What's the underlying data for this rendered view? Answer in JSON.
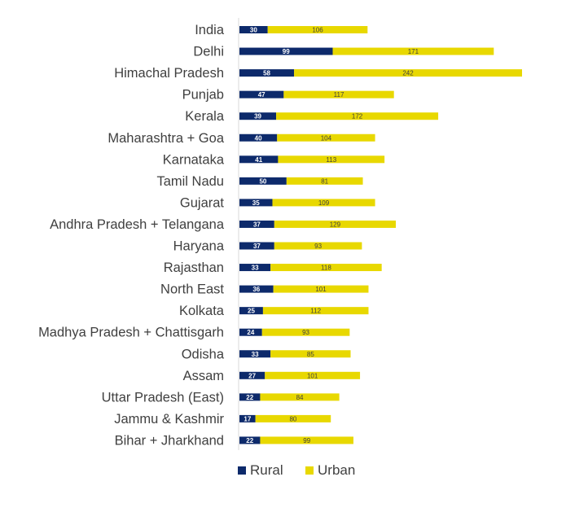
{
  "chart_data": {
    "type": "bar",
    "orientation": "horizontal",
    "stacked": true,
    "categories": [
      "India",
      "Delhi",
      "Himachal Pradesh",
      "Punjab",
      "Kerala",
      "Maharashtra + Goa",
      "Karnataka",
      "Tamil Nadu",
      "Gujarat",
      "Andhra Pradesh + Telangana",
      "Haryana",
      "Rajasthan",
      "North East",
      "Kolkata",
      "Madhya Pradesh + Chattisgarh",
      "Odisha",
      "Assam",
      "Uttar Pradesh (East)",
      "Jammu & Kashmir",
      "Bihar + Jharkhand"
    ],
    "series": [
      {
        "name": "Rural",
        "color": "#0d2a6b",
        "values": [
          30,
          99,
          58,
          47,
          39,
          40,
          41,
          50,
          35,
          37,
          37,
          33,
          36,
          25,
          24,
          33,
          27,
          22,
          17,
          22
        ]
      },
      {
        "name": "Urban",
        "color": "#e8d800",
        "values": [
          106,
          171,
          242,
          117,
          172,
          104,
          113,
          81,
          109,
          129,
          93,
          118,
          101,
          112,
          93,
          85,
          101,
          84,
          80,
          99
        ]
      }
    ],
    "data_labels": true,
    "legend_position": "bottom",
    "grid": false
  }
}
